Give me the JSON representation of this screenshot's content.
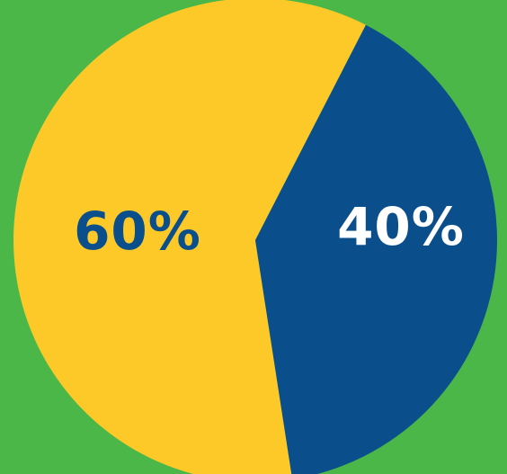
{
  "chart_data": {
    "type": "pie",
    "slices": [
      {
        "label": "60%",
        "value": 60,
        "color": "#fdc928",
        "label_color": "#0a4f8c"
      },
      {
        "label": "40%",
        "value": 40,
        "color": "#0a4f8c",
        "label_color": "#ffffff"
      }
    ],
    "background": "#4bb749",
    "legend": "none"
  }
}
